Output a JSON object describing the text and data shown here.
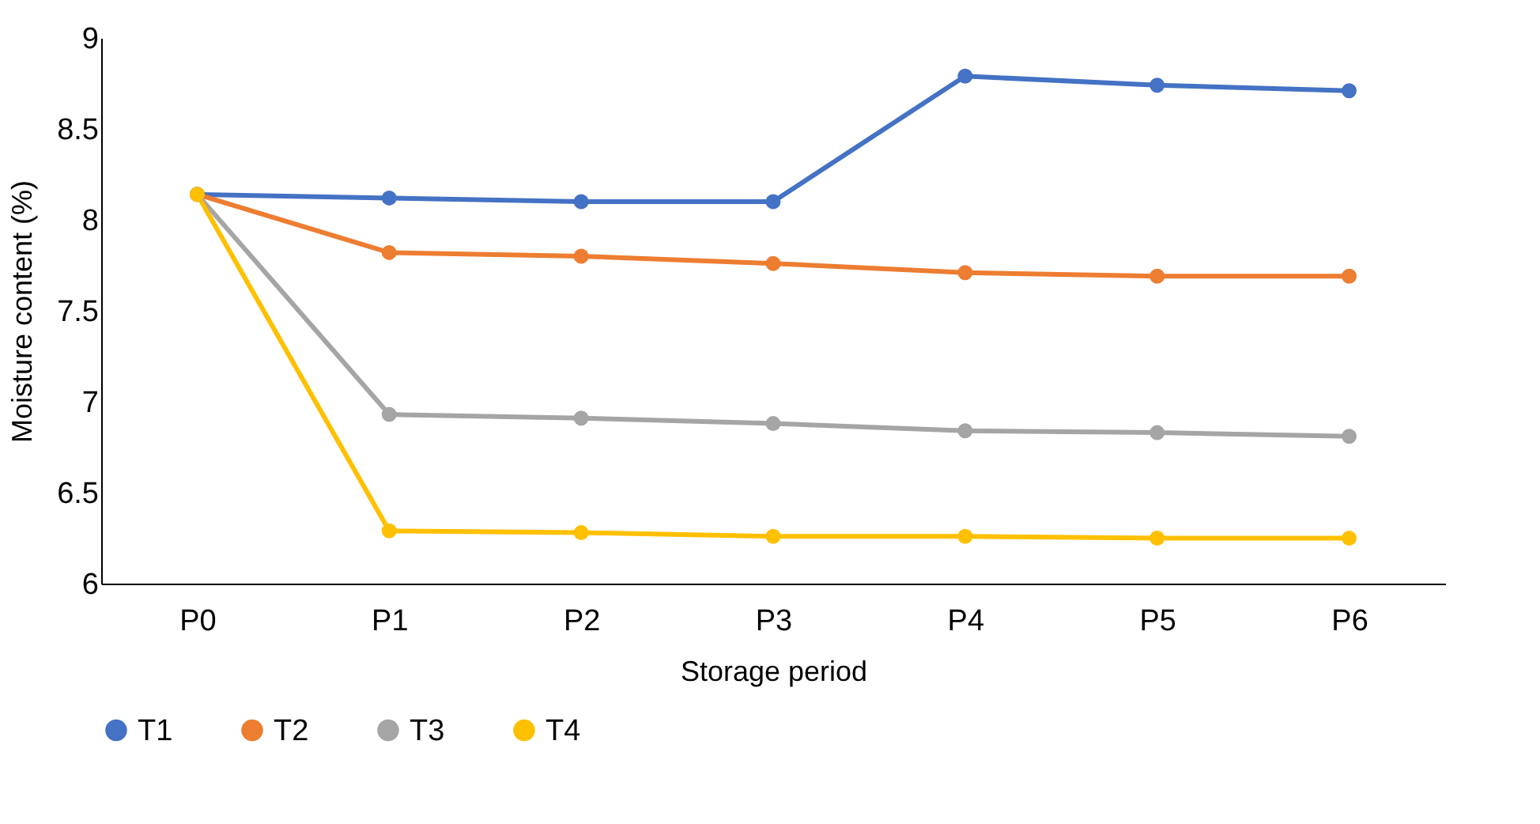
{
  "chart_data": {
    "type": "line",
    "xlabel": "Storage period",
    "ylabel": "Moisture content (%)",
    "categories": [
      "P0",
      "P1",
      "P2",
      "P3",
      "P4",
      "P5",
      "P6"
    ],
    "series": [
      {
        "name": "T1",
        "color": "#4472c4",
        "values": [
          8.14,
          8.12,
          8.1,
          8.1,
          8.79,
          8.74,
          8.71
        ]
      },
      {
        "name": "T2",
        "color": "#ed7d31",
        "values": [
          8.14,
          7.82,
          7.8,
          7.76,
          7.71,
          7.69,
          7.69
        ]
      },
      {
        "name": "T3",
        "color": "#a5a5a5",
        "values": [
          8.14,
          6.93,
          6.91,
          6.88,
          6.84,
          6.83,
          6.81
        ]
      },
      {
        "name": "T4",
        "color": "#ffc000",
        "values": [
          8.14,
          6.29,
          6.28,
          6.26,
          6.26,
          6.25,
          6.25
        ]
      }
    ],
    "ylim": [
      6,
      9
    ],
    "yticks": [
      6,
      6.5,
      7,
      7.5,
      8,
      8.5,
      9
    ],
    "grid": false,
    "legend": "bottom",
    "marker": "circle",
    "line_style": "solid"
  }
}
